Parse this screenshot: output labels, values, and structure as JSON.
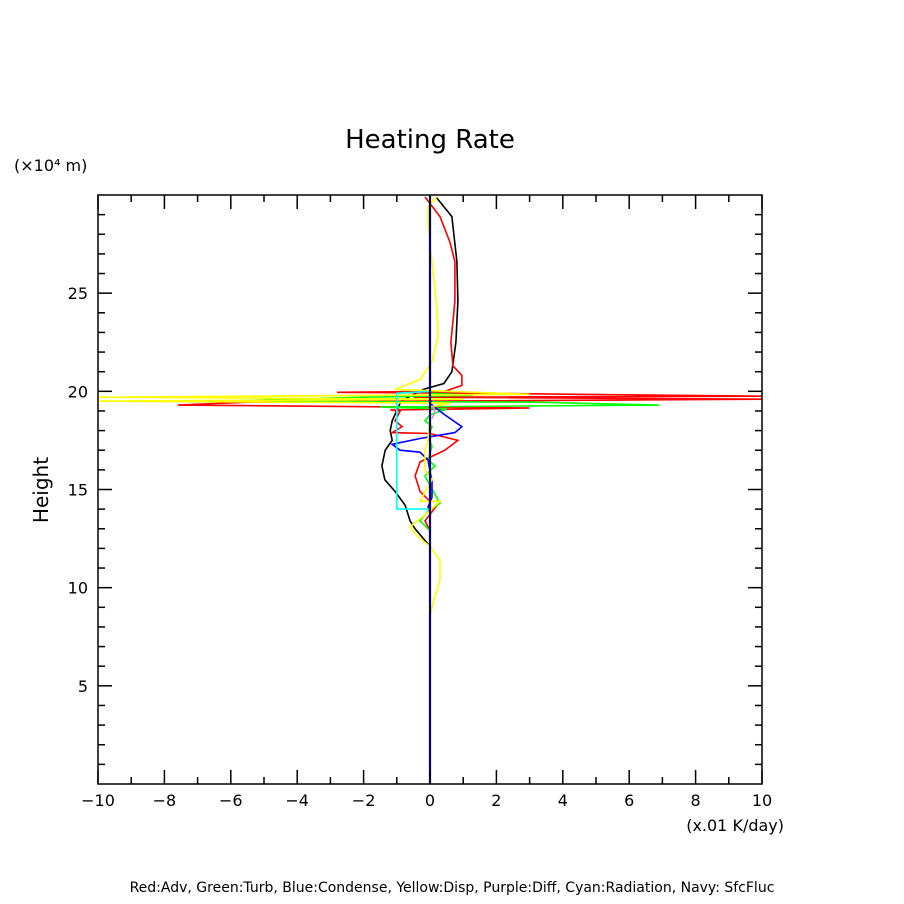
{
  "chart_data": {
    "type": "line",
    "title": "Heating Rate",
    "xlabel": "(x.01 K/day)",
    "ylabel": "Height",
    "yunit": "(×10⁴ m)",
    "xlim": [
      -10,
      10
    ],
    "ylim": [
      0,
      30
    ],
    "xticks": [
      -10,
      -8,
      -6,
      -4,
      -2,
      0,
      2,
      4,
      6,
      8,
      10
    ],
    "yticks": [
      5,
      10,
      15,
      20,
      25
    ],
    "grid": false,
    "legend_text": "Red:Adv, Green:Turb, Blue:Condense, Yellow:Disp, Purple:Diff, Cyan:Radiation, Navy: SfcFluc",
    "series": [
      {
        "color": "#000000",
        "points": [
          [
            0.18,
            29.9
          ],
          [
            0.66,
            28.9
          ],
          [
            0.81,
            26.6
          ],
          [
            0.84,
            24.6
          ],
          [
            0.78,
            22.5
          ],
          [
            0.66,
            21
          ],
          [
            0.42,
            20.4
          ],
          [
            -0.2,
            20.1
          ],
          [
            -0.87,
            19.5
          ],
          [
            -1.14,
            18.5
          ],
          [
            -1.2,
            18
          ],
          [
            -1.14,
            17.5
          ],
          [
            -1.35,
            17
          ],
          [
            -1.45,
            16.2
          ],
          [
            -1.36,
            15.5
          ],
          [
            -1.05,
            14.9
          ],
          [
            -0.75,
            14.2
          ],
          [
            -0.6,
            13.4
          ],
          [
            -0.45,
            13
          ],
          [
            0,
            12.1
          ]
        ]
      },
      {
        "color": "#ff0000",
        "points": [
          [
            -0.15,
            29.9
          ],
          [
            0.3,
            28.9
          ],
          [
            0.6,
            27.6
          ],
          [
            0.75,
            26.6
          ],
          [
            0.75,
            24.6
          ],
          [
            0.63,
            22.5
          ],
          [
            0.69,
            21.3
          ],
          [
            0.96,
            20.8
          ],
          [
            0.96,
            20.3
          ],
          [
            0.45,
            20
          ],
          [
            -2.8,
            19.95
          ],
          [
            1.5,
            19.9
          ],
          [
            10,
            19.75
          ],
          [
            -0.5,
            19.7
          ],
          [
            10,
            19.6
          ],
          [
            -5.4,
            19.45
          ],
          [
            -7.6,
            19.3
          ],
          [
            3,
            19.15
          ],
          [
            -1.2,
            19.05
          ],
          [
            -0.9,
            19
          ],
          [
            -1.05,
            18.5
          ],
          [
            -0.84,
            18.2
          ],
          [
            -1.14,
            17.9
          ],
          [
            0,
            17.85
          ],
          [
            0.84,
            17.5
          ],
          [
            0.45,
            17
          ],
          [
            -0.3,
            16.4
          ],
          [
            -0.45,
            15.7
          ],
          [
            -0.3,
            14.9
          ],
          [
            0,
            14.4
          ],
          [
            0.3,
            14.4
          ],
          [
            -0.15,
            13.4
          ],
          [
            0,
            12.9
          ]
        ]
      },
      {
        "color": "#00ff00",
        "points": [
          [
            0,
            19.9
          ],
          [
            1.3,
            19.8
          ],
          [
            -2,
            19.7
          ],
          [
            -6.3,
            19.5
          ],
          [
            3,
            19.45
          ],
          [
            6.9,
            19.3
          ],
          [
            -1.5,
            19.2
          ],
          [
            0.5,
            19.1
          ],
          [
            0,
            18.8
          ],
          [
            -0.15,
            18.5
          ],
          [
            0.06,
            18.2
          ],
          [
            -0.06,
            17.7
          ],
          [
            0.06,
            17.2
          ],
          [
            -0.06,
            16.5
          ],
          [
            0.15,
            16.2
          ],
          [
            -0.15,
            15.7
          ],
          [
            0,
            15.2
          ],
          [
            0.3,
            14.3
          ],
          [
            -0.06,
            13.9
          ],
          [
            -0.3,
            13.4
          ],
          [
            0,
            12.9
          ]
        ]
      },
      {
        "color": "#0000ff",
        "points": [
          [
            0,
            19.8
          ],
          [
            0.06,
            19.3
          ],
          [
            0.45,
            18.8
          ],
          [
            0.96,
            18.2
          ],
          [
            0.75,
            17.9
          ],
          [
            -0.3,
            17.6
          ],
          [
            -1.14,
            17.3
          ],
          [
            -0.9,
            17
          ],
          [
            -0.3,
            16.9
          ],
          [
            -0.06,
            16.5
          ],
          [
            0.06,
            15.4
          ],
          [
            0.06,
            14.6
          ],
          [
            -0.06,
            14.1
          ],
          [
            0,
            13.8
          ]
        ]
      },
      {
        "color": "#ffff00",
        "points": [
          [
            0.2,
            29.9
          ],
          [
            -0.06,
            29.4
          ],
          [
            -0.06,
            28.6
          ],
          [
            0.06,
            26.6
          ],
          [
            0.21,
            24.1
          ],
          [
            0.24,
            22.8
          ],
          [
            0.06,
            21.5
          ],
          [
            -0.3,
            20.6
          ],
          [
            -1.05,
            20.1
          ],
          [
            3,
            19.85
          ],
          [
            -10,
            19.7
          ],
          [
            1,
            19.6
          ],
          [
            -10,
            19.5
          ],
          [
            0.6,
            19.4
          ],
          [
            0,
            19.2
          ],
          [
            0,
            18.8
          ],
          [
            -0.06,
            17.5
          ],
          [
            -0.15,
            17
          ],
          [
            -0.15,
            16
          ],
          [
            0.06,
            15.5
          ],
          [
            -0.3,
            14.4
          ],
          [
            0.3,
            14.4
          ],
          [
            -0.15,
            13.7
          ],
          [
            -0.6,
            13.1
          ],
          [
            -0.36,
            12.6
          ],
          [
            0,
            12.1
          ],
          [
            0.3,
            11.4
          ],
          [
            0.3,
            10.4
          ],
          [
            0.1,
            9.3
          ],
          [
            0,
            8.5
          ]
        ]
      },
      {
        "color": "#cc99cc",
        "points": [
          [
            0.1,
            19.3
          ],
          [
            0.15,
            18.9
          ],
          [
            0.05,
            18.6
          ]
        ]
      },
      {
        "color": "#00ffff",
        "points": [
          [
            0,
            20
          ],
          [
            -1,
            19.9
          ],
          [
            -1,
            14
          ],
          [
            0,
            14
          ]
        ]
      },
      {
        "color": "#000080",
        "points": [
          [
            0,
            0
          ],
          [
            0,
            30
          ]
        ]
      }
    ]
  }
}
